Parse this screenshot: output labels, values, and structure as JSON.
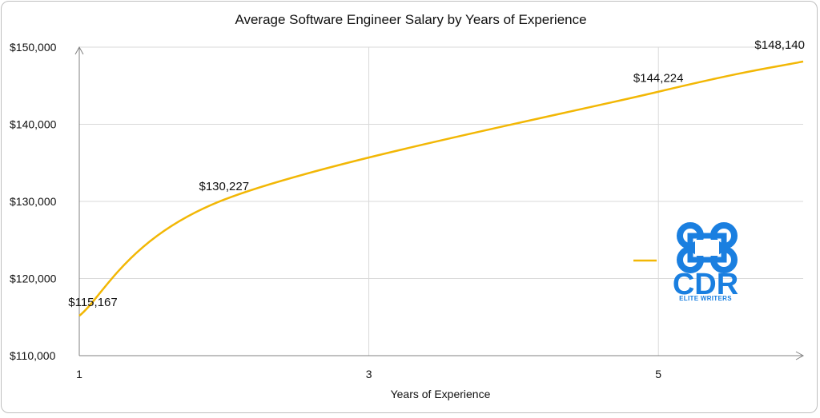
{
  "chart_data": {
    "type": "line",
    "title": "Average Software Engineer Salary by Years of Experience",
    "xlabel": "Years of Experience",
    "ylabel": "",
    "x": [
      1,
      2,
      5,
      6
    ],
    "series": [
      {
        "values": [
          115167,
          130227,
          144224,
          148140
        ],
        "color": "#f2b705"
      }
    ],
    "data_labels": [
      "$115,167",
      "$130,227",
      "$144,224",
      "$148,140"
    ],
    "xlim": [
      1,
      6
    ],
    "ylim": [
      110000,
      150000
    ],
    "x_ticks": [
      1,
      3,
      5
    ],
    "x_tick_labels": [
      "1",
      "3",
      "5"
    ],
    "y_ticks": [
      110000,
      120000,
      130000,
      140000,
      150000
    ],
    "y_tick_labels": [
      "$110,000",
      "$120,000",
      "$130,000",
      "$140,000",
      "$150,000"
    ],
    "grid": true,
    "line_color": "#f2b705",
    "grid_color": "#d9d9d9",
    "axis_color": "#808080"
  },
  "logo": {
    "text": "CDR",
    "subtitle": "ELITE WRITERS",
    "color": "#1a7fe0",
    "icon": "command-key-icon"
  }
}
